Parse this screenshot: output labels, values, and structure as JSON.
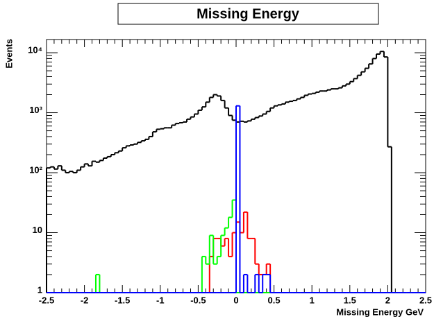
{
  "chart_data": {
    "type": "histogram",
    "title": "Missing Energy",
    "xlabel": "Missing Energy GeV",
    "ylabel": "Events",
    "bins": [
      -2.5,
      -2.45,
      -2.4,
      -2.35,
      -2.3,
      -2.25,
      -2.2,
      -2.15,
      -2.1,
      -2.05,
      -2,
      -1.95,
      -1.9,
      -1.85,
      -1.8,
      -1.75,
      -1.7,
      -1.65,
      -1.6,
      -1.55,
      -1.5,
      -1.45,
      -1.4,
      -1.35,
      -1.3,
      -1.25,
      -1.2,
      -1.15,
      -1.1,
      -1.05,
      -1,
      -0.95,
      -0.9,
      -0.85,
      -0.8,
      -0.75,
      -0.7,
      -0.65,
      -0.6,
      -0.55,
      -0.5,
      -0.45,
      -0.4,
      -0.35,
      -0.3,
      -0.25,
      -0.2,
      -0.15,
      -0.1,
      -0.05,
      0,
      0.05,
      0.1,
      0.15,
      0.2,
      0.25,
      0.3,
      0.35,
      0.4,
      0.45,
      0.5,
      0.55,
      0.6,
      0.65,
      0.7,
      0.75,
      0.8,
      0.85,
      0.9,
      0.95,
      1,
      1.05,
      1.1,
      1.15,
      1.2,
      1.25,
      1.3,
      1.35,
      1.4,
      1.45,
      1.5,
      1.55,
      1.6,
      1.65,
      1.7,
      1.75,
      1.8,
      1.85,
      1.9,
      1.95,
      2,
      2.05,
      2.1,
      2.15,
      2.2,
      2.25,
      2.3,
      2.35,
      2.4,
      2.45,
      2.5
    ],
    "series": [
      {
        "color": "#000000",
        "values": [
          120,
          125,
          115,
          130,
          110,
          100,
          105,
          100,
          110,
          125,
          140,
          130,
          155,
          150,
          160,
          175,
          185,
          200,
          215,
          230,
          260,
          280,
          290,
          300,
          320,
          340,
          360,
          400,
          480,
          530,
          540,
          560,
          560,
          620,
          660,
          680,
          700,
          780,
          850,
          950,
          1100,
          1250,
          1500,
          1800,
          2000,
          1900,
          1600,
          1200,
          900,
          750,
          700,
          720,
          700,
          730,
          780,
          830,
          880,
          950,
          1050,
          1200,
          1300,
          1350,
          1400,
          1500,
          1550,
          1600,
          1700,
          1800,
          1950,
          2050,
          2100,
          2200,
          2300,
          2300,
          2400,
          2500,
          2500,
          2600,
          2800,
          3000,
          3300,
          3700,
          4200,
          4800,
          5500,
          6500,
          8000,
          9500,
          10500,
          8500,
          270,
          0,
          0,
          0,
          0,
          0,
          0,
          0,
          0,
          0
        ]
      },
      {
        "color": "#ff0000",
        "values": [
          0,
          0,
          0,
          0,
          0,
          0,
          0,
          0,
          0,
          0,
          0,
          0,
          0,
          0,
          0,
          0,
          0,
          0,
          0,
          0,
          0,
          0,
          0,
          0,
          0,
          0,
          0,
          0,
          0,
          0,
          0,
          0,
          0,
          0,
          0,
          0,
          0,
          0,
          0,
          0,
          0,
          0,
          0,
          4,
          8,
          8,
          6,
          8,
          4,
          10,
          15,
          10,
          22,
          8,
          8,
          3,
          2,
          2,
          3,
          0,
          0,
          0,
          0,
          0,
          0,
          0,
          0,
          0,
          0,
          0,
          0,
          0,
          0,
          0,
          0,
          0,
          0,
          0,
          0,
          0,
          0,
          0,
          0,
          0,
          0,
          0,
          0,
          0,
          0,
          0,
          0,
          0,
          0,
          0,
          0,
          0,
          0,
          0,
          0,
          0
        ]
      },
      {
        "color": "#00ff00",
        "values": [
          0,
          0,
          0,
          0,
          0,
          0,
          0,
          0,
          0,
          0,
          0,
          0,
          0,
          2,
          0,
          0,
          0,
          0,
          0,
          0,
          0,
          0,
          0,
          0,
          0,
          0,
          0,
          0,
          0,
          0,
          0,
          0,
          0,
          0,
          0,
          0,
          0,
          0,
          0,
          0,
          0,
          4,
          3,
          9,
          3,
          4,
          9,
          12,
          18,
          35,
          0,
          0,
          0,
          0,
          0,
          0,
          0,
          0,
          0,
          0,
          0,
          0,
          0,
          0,
          0,
          0,
          0,
          0,
          0,
          0,
          0,
          0,
          0,
          0,
          0,
          0,
          0,
          0,
          0,
          0,
          0,
          0,
          0,
          0,
          0,
          0,
          0,
          0,
          0,
          0,
          0,
          0,
          0,
          0,
          0,
          0,
          0,
          0,
          0,
          0
        ]
      },
      {
        "color": "#0000ff",
        "values": [
          0,
          0,
          0,
          0,
          0,
          0,
          0,
          0,
          0,
          0,
          0,
          0,
          0,
          0,
          0,
          0,
          0,
          0,
          0,
          0,
          0,
          0,
          0,
          0,
          0,
          0,
          0,
          0,
          0,
          0,
          0,
          0,
          0,
          0,
          0,
          0,
          0,
          0,
          0,
          0,
          0,
          0,
          0,
          0,
          0,
          0,
          0,
          0,
          0,
          0,
          1300,
          0,
          2,
          0,
          0,
          2,
          0,
          2,
          2,
          0,
          0,
          0,
          0,
          0,
          0,
          0,
          0,
          0,
          0,
          0,
          0,
          0,
          0,
          0,
          0,
          0,
          0,
          0,
          0,
          0,
          0,
          0,
          0,
          0,
          0,
          0,
          0,
          0,
          0,
          0,
          0,
          0,
          0,
          0,
          0,
          0,
          0,
          0,
          0,
          0
        ]
      }
    ],
    "xlim": [
      -2.5,
      2.5
    ],
    "xticks": [
      -2.5,
      -2,
      -1.5,
      -1,
      -0.5,
      0,
      0.5,
      1,
      1.5,
      2,
      2.5
    ],
    "ylim": [
      1,
      16600
    ],
    "log_y": true,
    "yticks": [
      1,
      10,
      {
        "value": 100,
        "label": "10²"
      },
      {
        "value": 1000,
        "label": "10³"
      },
      {
        "value": 10000,
        "label": "10⁴"
      }
    ]
  }
}
